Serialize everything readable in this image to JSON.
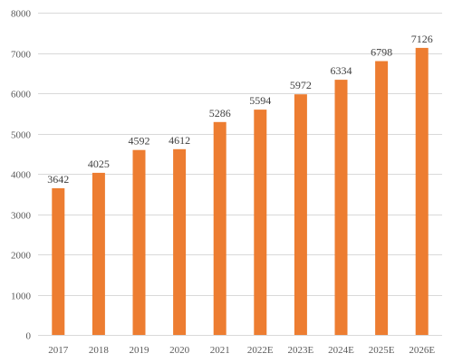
{
  "chart_data": {
    "type": "bar",
    "categories": [
      "2017",
      "2018",
      "2019",
      "2020",
      "2021",
      "2022E",
      "2023E",
      "2024E",
      "2025E",
      "2026E"
    ],
    "values": [
      3642,
      4025,
      4592,
      4612,
      5286,
      5594,
      5972,
      6334,
      6798,
      7126
    ],
    "data_labels": [
      "3642",
      "4025",
      "4592",
      "4612",
      "5286",
      "5594",
      "5972",
      "6334",
      "6798",
      "7126"
    ],
    "y_ticks": [
      "0",
      "1000",
      "2000",
      "3000",
      "4000",
      "5000",
      "6000",
      "7000",
      "8000"
    ],
    "ylim": [
      0,
      8000
    ],
    "title": "",
    "xlabel": "",
    "ylabel": "",
    "grid": true,
    "legend": "none",
    "bar_color": "#ED7D31"
  }
}
